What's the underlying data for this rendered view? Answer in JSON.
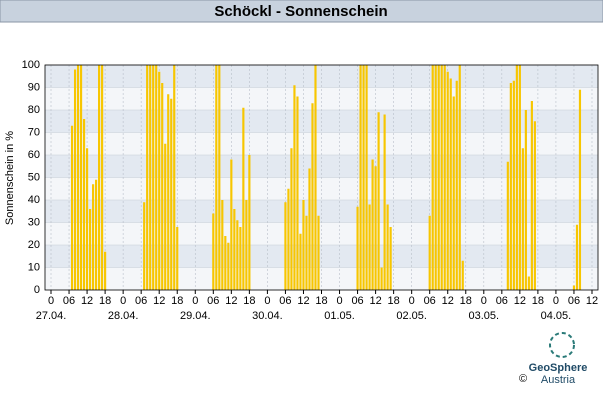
{
  "chart_data": {
    "type": "bar",
    "title": "Schöckl - Sonnenschein",
    "y_label": "Sonnenschein in %",
    "x": [
      7,
      8,
      9,
      10,
      11,
      12,
      13,
      14,
      15,
      16,
      17,
      18,
      31,
      32,
      33,
      34,
      35,
      36,
      37,
      38,
      39,
      40,
      41,
      42,
      54,
      55,
      56,
      57,
      58,
      59,
      60,
      61,
      62,
      63,
      64,
      65,
      66,
      78,
      79,
      80,
      81,
      82,
      83,
      84,
      85,
      86,
      87,
      88,
      89,
      102,
      103,
      104,
      105,
      106,
      107,
      108,
      109,
      110,
      111,
      112,
      113,
      126,
      127,
      128,
      129,
      130,
      131,
      132,
      133,
      134,
      135,
      136,
      137,
      152,
      153,
      154,
      155,
      156,
      157,
      158,
      159,
      160,
      161,
      174,
      175,
      176
    ],
    "values": [
      73,
      98,
      100,
      100,
      76,
      63,
      36,
      47,
      49,
      100,
      100,
      17,
      39,
      100,
      100,
      100,
      100,
      97,
      92,
      65,
      87,
      85,
      100,
      28,
      34,
      100,
      100,
      40,
      24,
      21,
      58,
      36,
      31,
      28,
      81,
      40,
      60,
      39,
      45,
      63,
      91,
      86,
      25,
      40,
      33,
      54,
      83,
      100,
      33,
      37,
      100,
      100,
      100,
      38,
      58,
      55,
      79,
      10,
      78,
      38,
      28,
      33,
      100,
      100,
      100,
      100,
      100,
      97,
      94,
      86,
      93,
      100,
      13,
      57,
      92,
      93,
      100,
      100,
      63,
      80,
      6,
      84,
      75,
      2,
      29,
      89
    ],
    "color": "#f7c600",
    "xlim": [
      -2,
      182
    ],
    "ylim": [
      0,
      100
    ],
    "yticks": [
      0,
      10,
      20,
      30,
      40,
      50,
      60,
      70,
      80,
      90,
      100
    ],
    "xticks": [
      0,
      {
        "value": 6,
        "label": "06"
      },
      12,
      18,
      {
        "value": 24,
        "label": "0"
      },
      {
        "value": 30,
        "label": "06"
      },
      {
        "value": 36,
        "label": "12"
      },
      {
        "value": 42,
        "label": "18"
      },
      {
        "value": 48,
        "label": "0"
      },
      {
        "value": 54,
        "label": "06"
      },
      {
        "value": 60,
        "label": "12"
      },
      {
        "value": 66,
        "label": "18"
      },
      {
        "value": 72,
        "label": "0"
      },
      {
        "value": 78,
        "label": "06"
      },
      {
        "value": 84,
        "label": "12"
      },
      {
        "value": 90,
        "label": "18"
      },
      {
        "value": 96,
        "label": "0"
      },
      {
        "value": 102,
        "label": "06"
      },
      {
        "value": 108,
        "label": "12"
      },
      {
        "value": 114,
        "label": "18"
      },
      {
        "value": 120,
        "label": "0"
      },
      {
        "value": 126,
        "label": "06"
      },
      {
        "value": 132,
        "label": "12"
      },
      {
        "value": 138,
        "label": "18"
      },
      {
        "value": 144,
        "label": "0"
      },
      {
        "value": 150,
        "label": "06"
      },
      {
        "value": 156,
        "label": "12"
      },
      {
        "value": 162,
        "label": "18"
      },
      {
        "value": 168,
        "label": "0"
      },
      {
        "value": 174,
        "label": "06"
      },
      {
        "value": 180,
        "label": "12"
      }
    ],
    "date_labels": [
      {
        "value": 0,
        "label": "27.04."
      },
      {
        "value": 24,
        "label": "28.04."
      },
      {
        "value": 48,
        "label": "29.04."
      },
      {
        "value": 72,
        "label": "30.04."
      },
      {
        "value": 96,
        "label": "01.05."
      },
      {
        "value": 120,
        "label": "02.05."
      },
      {
        "value": 144,
        "label": "03.05."
      },
      {
        "value": 168,
        "label": "04.05."
      }
    ],
    "grid": true
  },
  "footer": {
    "copyright": "©",
    "brand": "GeoSphere",
    "country": "Austria"
  }
}
